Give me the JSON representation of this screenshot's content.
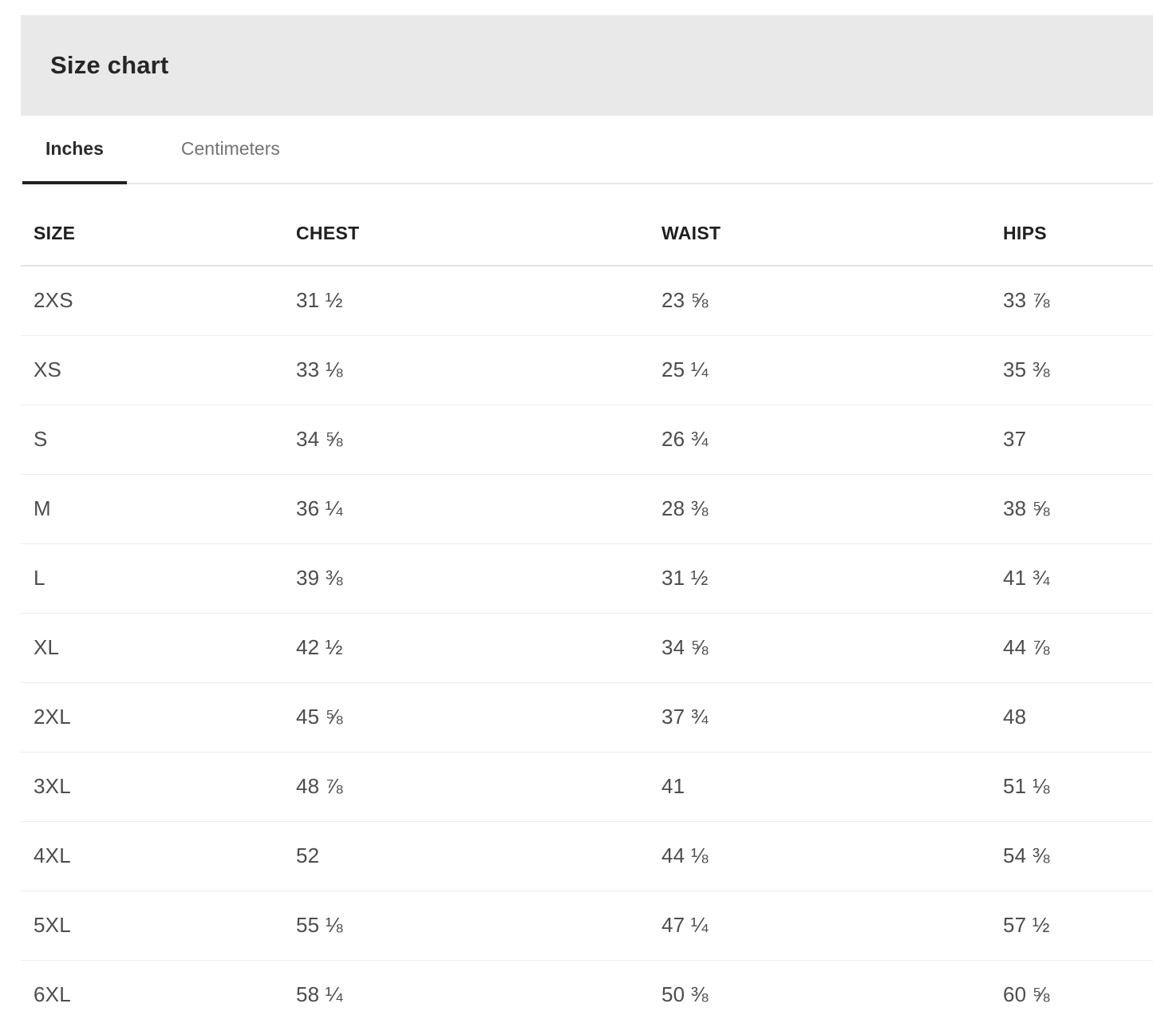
{
  "header": {
    "title": "Size chart"
  },
  "tabs": {
    "inches": {
      "label": "Inches",
      "active": true
    },
    "centimeters": {
      "label": "Centimeters",
      "active": false
    }
  },
  "table": {
    "columns": {
      "size": "SIZE",
      "chest": "CHEST",
      "waist": "WAIST",
      "hips": "HIPS"
    },
    "rows": [
      {
        "size": "2XS",
        "chest": "31 ½",
        "waist": "23 ⅝",
        "hips": "33 ⅞"
      },
      {
        "size": "XS",
        "chest": "33 ⅛",
        "waist": "25 ¼",
        "hips": "35 ⅜"
      },
      {
        "size": "S",
        "chest": "34 ⅝",
        "waist": "26 ¾",
        "hips": "37"
      },
      {
        "size": "M",
        "chest": "36 ¼",
        "waist": "28 ⅜",
        "hips": "38 ⅝"
      },
      {
        "size": "L",
        "chest": "39 ⅜",
        "waist": "31 ½",
        "hips": "41 ¾"
      },
      {
        "size": "XL",
        "chest": "42 ½",
        "waist": "34 ⅝",
        "hips": "44 ⅞"
      },
      {
        "size": "2XL",
        "chest": "45 ⅝",
        "waist": "37 ¾",
        "hips": "48"
      },
      {
        "size": "3XL",
        "chest": "48 ⅞",
        "waist": "41",
        "hips": "51 ⅛"
      },
      {
        "size": "4XL",
        "chest": "52",
        "waist": "44 ⅛",
        "hips": "54 ⅜"
      },
      {
        "size": "5XL",
        "chest": "55 ⅛",
        "waist": "47 ¼",
        "hips": "57 ½"
      },
      {
        "size": "6XL",
        "chest": "58 ¼",
        "waist": "50 ⅜",
        "hips": "60 ⅝"
      }
    ]
  },
  "colors": {
    "header_bg": "#e9e9e9",
    "title_text": "#262626",
    "tab_active": "#2b2b2b",
    "tab_inactive": "#747474",
    "tab_underline": "#212121",
    "tabbar_line": "#e8e8e8",
    "th_text": "#1f1f1f",
    "header_sep": "#e3e3e3",
    "row_sep": "#ececec",
    "cell_text": "#4d4d4d",
    "page_bg": "#ffffff"
  }
}
